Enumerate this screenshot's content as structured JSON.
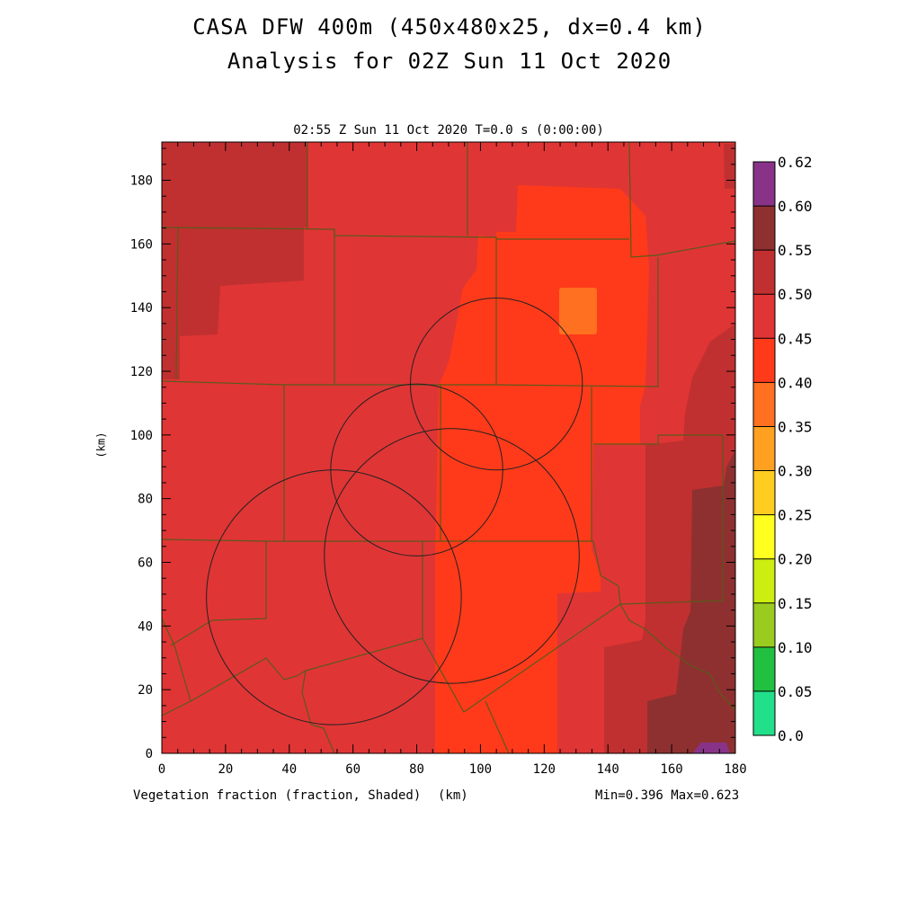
{
  "title_line1": "CASA DFW 400m (450x480x25, dx=0.4 km)",
  "title_line2": "Analysis for 02Z Sun 11 Oct 2020",
  "subtitle": "02:55 Z Sun 11 Oct 2020   T=0.0 s (0:00:00)",
  "ylabel": "(km)",
  "xlabel": "(km)",
  "variable_label": "Vegetation fraction (fraction, Shaded)",
  "minmax": "Min=0.396 Max=0.623",
  "x_ticks": [
    "0",
    "20",
    "40",
    "60",
    "80",
    "100",
    "120",
    "140",
    "160",
    "180"
  ],
  "y_ticks": [
    "0",
    "20",
    "40",
    "60",
    "80",
    "100",
    "120",
    "140",
    "160",
    "180"
  ],
  "colorbar": {
    "labels": [
      "0.0",
      "0.05",
      "0.10",
      "0.15",
      "0.20",
      "0.25",
      "0.30",
      "0.35",
      "0.40",
      "0.45",
      "0.50",
      "0.55",
      "0.60",
      "0.62"
    ],
    "colors": [
      "#22e08a",
      "#22c040",
      "#9acc20",
      "#ccee10",
      "#ffff20",
      "#ffcc20",
      "#ffa020",
      "#ff7020",
      "#ff3a1a",
      "#e03535",
      "#c03030",
      "#8e3030",
      "#883388"
    ]
  },
  "map": {
    "extent_km": [
      0,
      180,
      0,
      192
    ],
    "field_colors": {
      "base": "#e03535",
      "low": "#ff3a1a",
      "lowest": "#ff7020",
      "high": "#c03030",
      "highest": "#8e3030",
      "max": "#883388"
    },
    "radar_rings": [
      {
        "cx": 105,
        "cy": 116,
        "r": 27
      },
      {
        "cx": 80,
        "cy": 89,
        "r": 27
      },
      {
        "cx": 91,
        "cy": 62,
        "r": 40
      },
      {
        "cx": 54,
        "cy": 49,
        "r": 40
      }
    ]
  }
}
